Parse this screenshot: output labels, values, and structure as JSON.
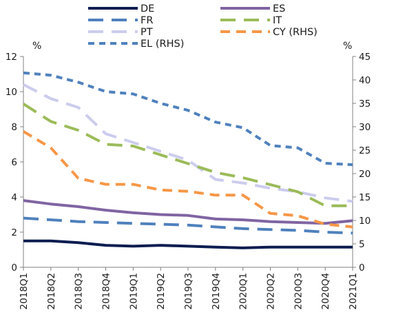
{
  "chart_data": {
    "type": "line",
    "title": "",
    "xlabel": "",
    "y_left_unit": "%",
    "y_right_unit": "%",
    "ylim_left": [
      0,
      12
    ],
    "ylim_right": [
      0,
      45
    ],
    "y_left_ticks": [
      "0",
      "2",
      "4",
      "6",
      "8",
      "10",
      "12"
    ],
    "y_right_ticks": [
      "0",
      "5",
      "10",
      "15",
      "20",
      "25",
      "30",
      "35",
      "40",
      "45"
    ],
    "categories": [
      "2018Q1",
      "2018Q2",
      "2018Q3",
      "2018Q4",
      "2019Q1",
      "2019Q2",
      "2019Q3",
      "2019Q4",
      "2020Q1",
      "2020Q2",
      "2020Q3",
      "2020Q4",
      "2021Q1"
    ],
    "legend_position": "top",
    "grid": false,
    "series": [
      {
        "name": "DE",
        "axis": "left",
        "color": "#0b1d51",
        "style": "solid",
        "values": [
          1.5,
          1.5,
          1.4,
          1.25,
          1.2,
          1.25,
          1.2,
          1.15,
          1.1,
          1.15,
          1.15,
          1.15,
          1.15
        ]
      },
      {
        "name": "ES",
        "axis": "left",
        "color": "#8064a2",
        "style": "solid",
        "values": [
          3.8,
          3.6,
          3.45,
          3.25,
          3.1,
          3.0,
          2.95,
          2.75,
          2.7,
          2.6,
          2.55,
          2.5,
          2.65
        ]
      },
      {
        "name": "FR",
        "axis": "left",
        "color": "#4f81bd",
        "style": "long-dash",
        "values": [
          2.8,
          2.7,
          2.6,
          2.55,
          2.5,
          2.45,
          2.4,
          2.3,
          2.2,
          2.15,
          2.1,
          2.0,
          1.95
        ]
      },
      {
        "name": "IT",
        "axis": "left",
        "color": "#9bbb59",
        "style": "long-dash",
        "values": [
          9.3,
          8.3,
          7.8,
          7.0,
          6.9,
          6.4,
          5.9,
          5.4,
          5.1,
          4.7,
          4.3,
          3.5,
          3.5
        ]
      },
      {
        "name": "PT",
        "axis": "left",
        "color": "#ccccee",
        "style": "long-dash",
        "values": [
          10.4,
          9.6,
          9.1,
          7.6,
          7.1,
          6.6,
          6.1,
          5.0,
          4.8,
          4.5,
          4.3,
          3.95,
          3.75
        ]
      },
      {
        "name": "CY (RHS)",
        "axis": "right",
        "color": "#f79646",
        "style": "dash",
        "values": [
          29.0,
          25.5,
          19.0,
          17.7,
          17.7,
          16.5,
          16.2,
          15.4,
          15.4,
          11.5,
          11.0,
          9.2,
          8.6
        ]
      },
      {
        "name": "EL (RHS)",
        "axis": "right",
        "color": "#4f81bd",
        "style": "short-dash",
        "values": [
          41.5,
          41.0,
          39.5,
          37.5,
          37.0,
          35.0,
          33.5,
          31.0,
          29.8,
          26.0,
          25.5,
          22.2,
          21.9
        ]
      }
    ]
  }
}
